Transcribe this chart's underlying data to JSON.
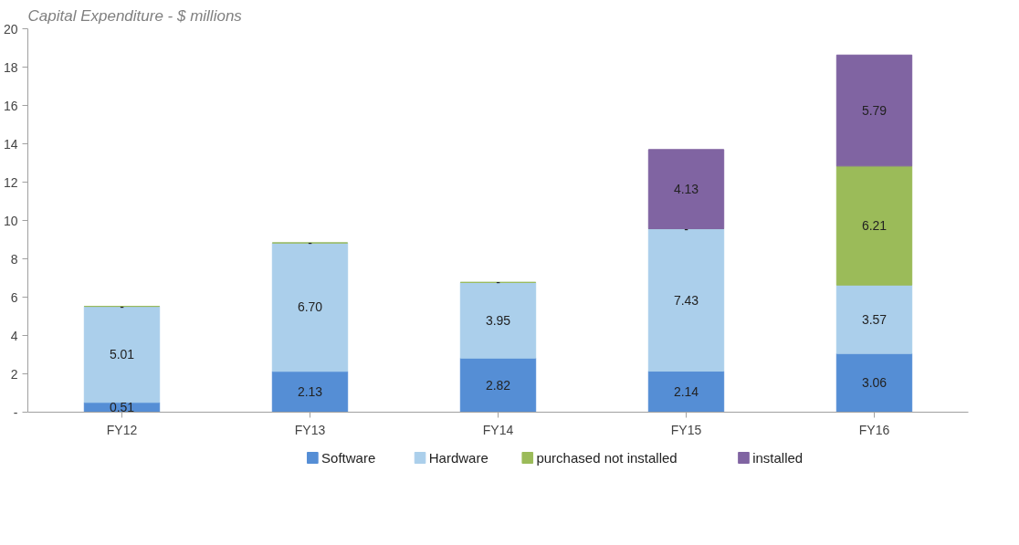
{
  "chart_data": {
    "type": "bar",
    "stacked": true,
    "title": "Capital Expenditure - $ millions",
    "categories": [
      "FY12",
      "FY13",
      "FY14",
      "FY15",
      "FY16"
    ],
    "series": [
      {
        "name": "Software",
        "color": "#558ed5",
        "values": [
          0.51,
          2.13,
          2.82,
          2.14,
          3.06
        ],
        "value_labels": [
          "0.51",
          "2.13",
          "2.82",
          "2.14",
          "3.06"
        ]
      },
      {
        "name": "Hardware",
        "color": "#abcfeb",
        "values": [
          5.01,
          6.7,
          3.95,
          7.43,
          3.57
        ],
        "value_labels": [
          "5.01",
          "6.70",
          "3.95",
          "7.43",
          "3.57"
        ]
      },
      {
        "name": "purchased not installed",
        "color": "#9bbb59",
        "values": [
          0,
          0,
          0,
          0,
          6.21
        ],
        "value_labels": [
          "-",
          "-",
          "-",
          "-",
          "6.21"
        ]
      },
      {
        "name": "installed",
        "color": "#8064a2",
        "values": [
          null,
          null,
          null,
          4.13,
          5.79
        ],
        "value_labels": [
          null,
          null,
          null,
          "4.13",
          "5.79"
        ]
      }
    ],
    "ylim": [
      0,
      20
    ],
    "yticks": [
      {
        "value": 0,
        "label": "-"
      },
      2,
      4,
      6,
      8,
      10,
      12,
      14,
      16,
      18,
      20
    ],
    "grid": false,
    "legend": "bottom"
  }
}
